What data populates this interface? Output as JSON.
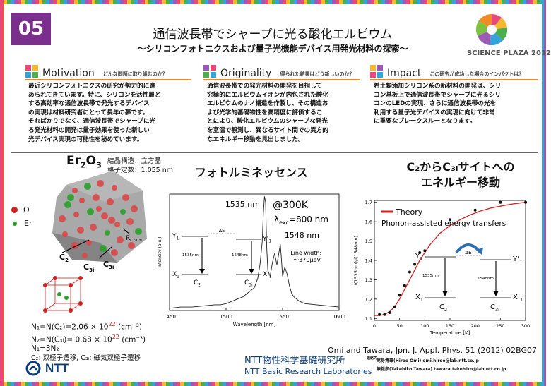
{
  "header": {
    "number": "05",
    "title": "通信波長帯でシャープに光る酸化エルビウム",
    "subtitle": "～シリコンフォトニクスおよび量子光機能デバイス用発光材料の探索～",
    "logo_text": "SCIENCE PLAZA 2012"
  },
  "sections": [
    {
      "title": "Motivation",
      "question": "どんな問題に取り組むのか？",
      "lines": [
        "最近シリコンフォトニクスの研究が勢力的に進",
        "められてきています。特に、シリコンを活性層と",
        "する高効率な通信波長帯で発光するデバイス",
        "の実現は材料研究者にとって長年の夢です。",
        "そればかりでなく、通信波長帯でシャープに光",
        "る発光材料の開発は量子効果を使った新しい",
        "光デバイス実現の可能性を秘めています。"
      ]
    },
    {
      "title": "Originality",
      "question": "得られた結果はどう新しいのか？",
      "lines": [
        "通信波長帯での発光材料の開発を目指して",
        "究極的にエルビウムイオンが内包された酸化",
        "エルビウムのナノ構造を作製し、その構造お",
        "よび光学的基礎物性を高精度に評価するこ",
        "とにより、酸化エルビウムのシャープな発光",
        "を室温で観測し、異なるサイト間での異方的",
        "なエネルギー移動を見出しました。"
      ]
    },
    {
      "title": "Impact",
      "question": "この研究が成功した場合のインパクトは？",
      "lines": [
        "希土類添加シリコン系の新材料の開発は、シリ",
        "コン基板上で通信波長帯でシャープに光るシリ",
        "コンのLEDの実現、さらに通信波長帯の光を",
        "利用する量子光デバイスの実現に向けて非常",
        "に重要なブレークスルーとなります。"
      ]
    }
  ],
  "crystal": {
    "formula_main": "Er",
    "formula_sub1": "2",
    "formula_o": "O",
    "formula_sub2": "3",
    "structure_line": "結晶構造：立方晶",
    "lattice_line": "格子定数：1.055 nm",
    "legend_o": "O",
    "legend_er": "Er",
    "label_c2": "C",
    "label_c2_sub": "2",
    "label_c3i": "C",
    "label_c3i_sub": "3i",
    "label_r": "R",
    "label_r_sub": "C2-C3i",
    "eq1": "N₁=N(C₂)=2.06 × 10",
    "eq1_exp": "22",
    "eq1_unit": " (cm⁻³)",
    "eq2": "N₂=N(C₃ᵢ)= 0.68 × 10",
    "eq2_exp": "22",
    "eq2_unit": " (cm⁻³)",
    "eq3": "N₁=3N₂",
    "eq4": "C₂: 双極子遷移, C₃ᵢ: 磁気双極子遷移"
  },
  "pl_title": "フォトルミネッセンス",
  "energy_title_line1": "C₂からC₃ᵢサイトへの",
  "energy_title_line2": "エネルギー移動",
  "chart_data": [
    {
      "type": "line",
      "title": "",
      "xlabel": "Wavelength [nm]",
      "ylabel": "Intensity (a.u.)",
      "xlim": [
        1450,
        1600
      ],
      "xticks": [
        "1450",
        "1500",
        "1550",
        "1600"
      ],
      "series": [
        {
          "x": [
            1450,
            1460,
            1470,
            1480,
            1490,
            1495,
            1500,
            1505,
            1510,
            1515,
            1520,
            1525,
            1528,
            1530,
            1532,
            1533,
            1534,
            1535,
            1536,
            1537,
            1539,
            1541,
            1543,
            1545,
            1547,
            1548,
            1549,
            1550,
            1552,
            1554,
            1556,
            1558,
            1560,
            1565,
            1570,
            1580,
            1590,
            1600
          ],
          "y": [
            0.02,
            0.03,
            0.03,
            0.04,
            0.05,
            0.05,
            0.06,
            0.08,
            0.1,
            0.12,
            0.16,
            0.2,
            0.28,
            0.4,
            0.6,
            0.85,
            1.0,
            0.95,
            0.55,
            0.35,
            0.3,
            0.42,
            0.5,
            0.4,
            0.52,
            0.58,
            0.45,
            0.3,
            0.38,
            0.32,
            0.22,
            0.15,
            0.12,
            0.08,
            0.06,
            0.05,
            0.04,
            0.03
          ]
        }
      ],
      "annotations": {
        "peak1": "1535 nm",
        "temp": "@300K",
        "lambda": "λ",
        "lambda_sub": "exc",
        "lambda_val": "=800 nm",
        "peak2": "1548 nm",
        "linewidth_line1": "Line width:",
        "linewidth_line2": "～370μeV",
        "y1": "Y",
        "y1_sub": "1",
        "y1p": "Y’",
        "y1p_sub": "1",
        "x1": "X",
        "x1_sub": "1",
        "x1p": "X’",
        "x1p_sub": "1",
        "de": "ΔE",
        "t1": "1535nm",
        "t2": "1548nm",
        "c2": "C",
        "c2_sub": "2",
        "c3i": "C",
        "c3i_sub": "3i"
      }
    },
    {
      "type": "scatter",
      "title": "",
      "xlabel": "Temperature [K]",
      "ylabel": "I(1535nm)/I(1548nm)",
      "xlim": [
        0,
        300
      ],
      "ylim": [
        1.09,
        1.71
      ],
      "xticks": [
        "0",
        "50",
        "100",
        "150",
        "200",
        "250",
        "300"
      ],
      "yticks": [
        "1.1",
        "1.2",
        "1.3",
        "1.4",
        "1.5",
        "1.6",
        "1.7"
      ],
      "series": [
        {
          "name": "Theory",
          "kind": "line",
          "x": [
            0,
            10,
            20,
            30,
            40,
            50,
            60,
            70,
            80,
            90,
            100,
            110,
            120,
            130,
            140,
            150,
            170,
            190,
            210,
            230,
            250,
            270,
            300
          ],
          "y": [
            1.115,
            1.115,
            1.12,
            1.135,
            1.16,
            1.2,
            1.25,
            1.3,
            1.35,
            1.4,
            1.44,
            1.48,
            1.51,
            1.54,
            1.56,
            1.58,
            1.61,
            1.635,
            1.655,
            1.67,
            1.68,
            1.69,
            1.7
          ]
        },
        {
          "name": "Phonon-assisted energy transfers",
          "kind": "points",
          "x": [
            10,
            20,
            30,
            40,
            50,
            60,
            70,
            80,
            90,
            100,
            150,
            200,
            250,
            300
          ],
          "y": [
            1.12,
            1.12,
            1.13,
            1.16,
            1.22,
            1.27,
            1.34,
            1.38,
            1.44,
            1.45,
            1.61,
            1.66,
            1.7,
            1.7
          ]
        }
      ],
      "annotations": {
        "y1": "Y",
        "y1_sub": "1",
        "y1p": "Y’",
        "y1p_sub": "1",
        "x1": "X",
        "x1_sub": "1",
        "x1p": "X’",
        "x1p_sub": "1",
        "de": "ΔE",
        "t1": "1535nm",
        "t2": "1548nm",
        "c2": "C",
        "c2_sub": "2",
        "c3i": "C",
        "c3i_sub": "3i"
      }
    }
  ],
  "footer": {
    "citation": "Omi and Tawara, Jpn. J. Appl. Phys. 51 (2012) 02BG07",
    "ntt": "NTT",
    "lab_jp": "NTT物性科学基礎研究所",
    "lab_en": "NTT Basic Research Laboratories",
    "contact_label": "連絡先",
    "contact1": "尾身博雄(Hiroo Omi) omi.hiroo@lab.ntt.co.jp",
    "contact2": "俵毅彦(Takehiko Tawara) tawara.takehiko@lab.ntt.co.jp"
  }
}
